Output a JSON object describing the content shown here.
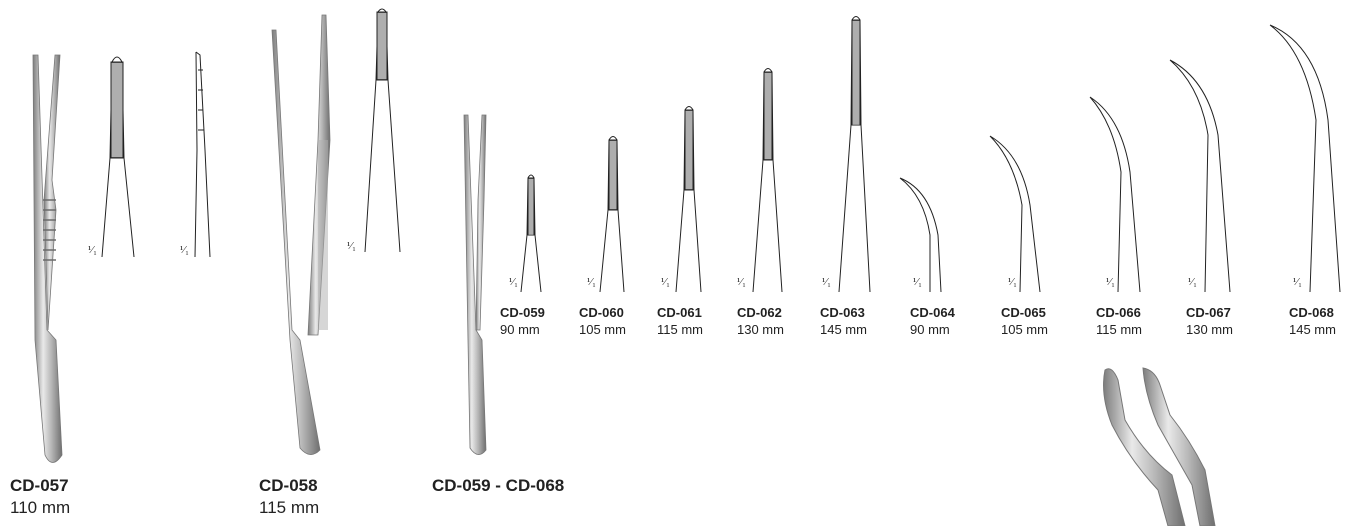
{
  "scale_mark": "¹⁄₁",
  "large_items": [
    {
      "code": "CD-057",
      "length": "110 mm"
    },
    {
      "code": "CD-058",
      "length": "115 mm"
    },
    {
      "code": "CD-059 - CD-068",
      "length": ""
    }
  ],
  "tips": [
    {
      "code": "CD-059",
      "length": "90 mm",
      "shape": "straight"
    },
    {
      "code": "CD-060",
      "length": "105 mm",
      "shape": "straight"
    },
    {
      "code": "CD-061",
      "length": "115 mm",
      "shape": "straight"
    },
    {
      "code": "CD-062",
      "length": "130 mm",
      "shape": "straight"
    },
    {
      "code": "CD-063",
      "length": "145 mm",
      "shape": "straight"
    },
    {
      "code": "CD-064",
      "length": "90 mm",
      "shape": "curved"
    },
    {
      "code": "CD-065",
      "length": "105 mm",
      "shape": "curved"
    },
    {
      "code": "CD-066",
      "length": "115 mm",
      "shape": "curved"
    },
    {
      "code": "CD-067",
      "length": "130 mm",
      "shape": "curved"
    },
    {
      "code": "CD-068",
      "length": "145 mm",
      "shape": "curved"
    }
  ],
  "colors": {
    "steel_light": "#e8e8e8",
    "steel_dark": "#8a8a8a",
    "ink": "#222222"
  }
}
